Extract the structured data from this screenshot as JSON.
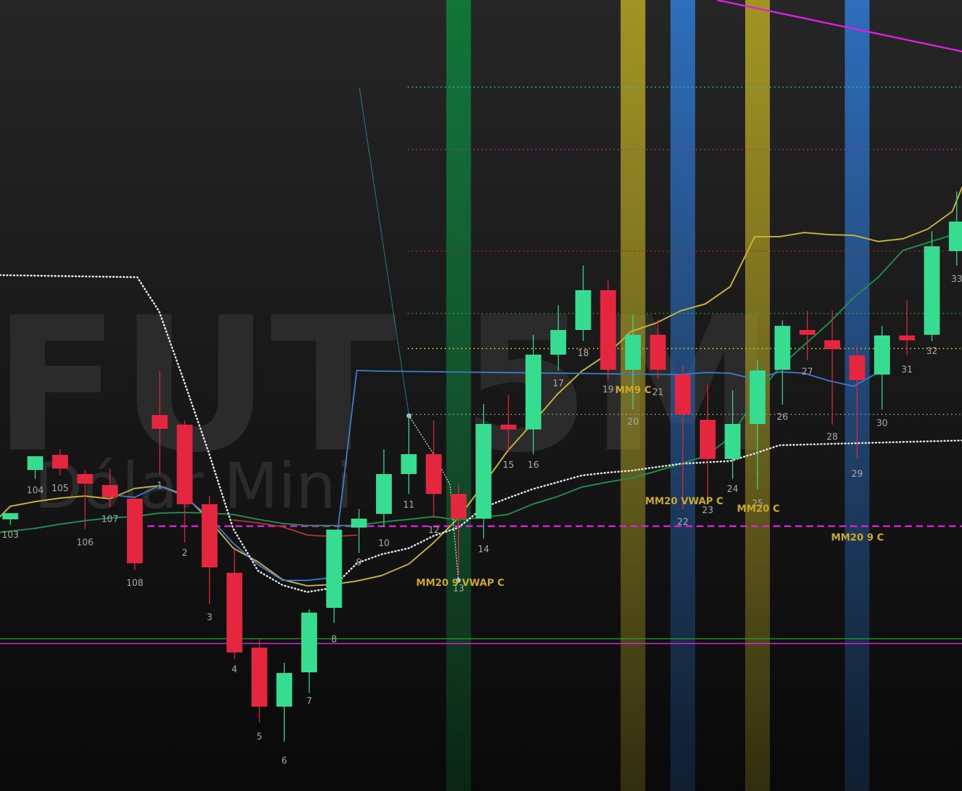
{
  "colors": {
    "bull": "#36dc8f",
    "bear": "#e5263f",
    "bar_label": "#a9a9a9",
    "annotation": "#c9a82c",
    "sma_fast": "#c9b43a",
    "sma_slow": "#1f8f4f",
    "ma_blue": "#3a78c9",
    "ma_red": "#b03030",
    "vwap": "#e6e6e6",
    "support_magenta": "#e020e0",
    "support_green": "#22aa22",
    "trend_magenta": "#e020e0",
    "level_cyan": "#20c8d0",
    "level_magenta": "#c020c0",
    "level_red": "#c02020",
    "level_green": "#20b020",
    "level_yellow": "#c8c820",
    "level_gray": "#9aa0a6",
    "band_green": "#0f7a3a",
    "band_yellow": "#a89a22",
    "band_blue": "#1f5a9a",
    "watermark": "#2b2b2b"
  },
  "watermark": {
    "line1": "FUT 5M",
    "line2": "Dólar Mini"
  },
  "chart_data": {
    "type": "candlestick",
    "price_range": [
      0,
      1153
    ],
    "note_units": "unlabeled price axis (not shown); values in relative price units, higher = higher price",
    "candles": [
      {
        "label": "103",
        "o": 396,
        "h": 405,
        "l": 388,
        "c": 405
      },
      {
        "label": "104",
        "o": 468,
        "h": 488,
        "l": 455,
        "c": 488
      },
      {
        "label": "105",
        "o": 490,
        "h": 498,
        "l": 460,
        "c": 470
      },
      {
        "label": "106",
        "o": 462,
        "h": 468,
        "l": 382,
        "c": 448
      },
      {
        "label": "107",
        "o": 446,
        "h": 470,
        "l": 413,
        "c": 428
      },
      {
        "label": "108",
        "o": 426,
        "h": 430,
        "l": 322,
        "c": 332
      },
      {
        "label": "1",
        "o": 548,
        "h": 612,
        "l": 462,
        "c": 528
      },
      {
        "label": "2",
        "o": 534,
        "h": 540,
        "l": 362,
        "c": 418
      },
      {
        "label": "3",
        "o": 418,
        "h": 430,
        "l": 272,
        "c": 326
      },
      {
        "label": "4",
        "o": 318,
        "h": 353,
        "l": 192,
        "c": 202
      },
      {
        "label": "5",
        "o": 209,
        "h": 222,
        "l": 100,
        "c": 123
      },
      {
        "label": "6",
        "o": 123,
        "h": 187,
        "l": 72,
        "c": 172
      },
      {
        "label": "7",
        "o": 173,
        "h": 265,
        "l": 143,
        "c": 260
      },
      {
        "label": "8",
        "o": 267,
        "h": 381,
        "l": 245,
        "c": 381
      },
      {
        "label": "9",
        "o": 384,
        "h": 411,
        "l": 347,
        "c": 397
      },
      {
        "label": "10",
        "o": 404,
        "h": 498,
        "l": 385,
        "c": 462
      },
      {
        "label": "11",
        "o": 462,
        "h": 548,
        "l": 433,
        "c": 491
      },
      {
        "label": "12",
        "o": 491,
        "h": 540,
        "l": 398,
        "c": 433
      },
      {
        "label": "13",
        "o": 433,
        "h": 448,
        "l": 315,
        "c": 397
      },
      {
        "label": "14",
        "o": 397,
        "h": 564,
        "l": 368,
        "c": 535
      },
      {
        "label": "15",
        "o": 534,
        "h": 577,
        "l": 494,
        "c": 527
      },
      {
        "label": "16",
        "o": 527,
        "h": 665,
        "l": 491,
        "c": 636
      },
      {
        "label": "17",
        "o": 636,
        "h": 708,
        "l": 613,
        "c": 672
      },
      {
        "label": "18",
        "o": 672,
        "h": 766,
        "l": 656,
        "c": 730
      },
      {
        "label": "19",
        "o": 730,
        "h": 744,
        "l": 601,
        "c": 614
      },
      {
        "label": "20",
        "o": 614,
        "h": 694,
        "l": 556,
        "c": 665
      },
      {
        "label": "21",
        "o": 665,
        "h": 687,
        "l": 601,
        "c": 614
      },
      {
        "label": "22",
        "o": 607,
        "h": 620,
        "l": 411,
        "c": 549
      },
      {
        "label": "23",
        "o": 541,
        "h": 592,
        "l": 426,
        "c": 484
      },
      {
        "label": "24",
        "o": 484,
        "h": 584,
        "l": 455,
        "c": 535
      },
      {
        "label": "25",
        "o": 535,
        "h": 628,
        "l": 440,
        "c": 613
      },
      {
        "label": "26",
        "o": 614,
        "h": 686,
        "l": 563,
        "c": 678
      },
      {
        "label": "27",
        "o": 672,
        "h": 700,
        "l": 628,
        "c": 665
      },
      {
        "label": "28",
        "o": 657,
        "h": 701,
        "l": 534,
        "c": 644
      },
      {
        "label": "29",
        "o": 635,
        "h": 650,
        "l": 484,
        "c": 599
      },
      {
        "label": "30",
        "o": 607,
        "h": 678,
        "l": 556,
        "c": 664
      },
      {
        "label": "31",
        "o": 664,
        "h": 715,
        "l": 635,
        "c": 657
      },
      {
        "label": "32",
        "o": 665,
        "h": 816,
        "l": 656,
        "c": 794
      },
      {
        "label": "33",
        "o": 787,
        "h": 874,
        "l": 766,
        "c": 830
      }
    ],
    "series": [
      {
        "key": "sma_fast",
        "values": [
          400,
          415,
          422,
          427,
          430,
          426,
          441,
          445,
          432,
          396,
          354,
          334,
          308,
          299,
          301,
          306,
          314,
          331,
          362,
          398,
          446,
          496,
          536,
          578,
          612,
          636,
          670,
          682,
          700,
          710,
          735,
          808,
          808,
          814,
          811,
          810,
          801,
          805,
          819,
          845,
          880
        ]
      },
      {
        "key": "sma_slow",
        "values": [
          377,
          383,
          389,
          394,
          398,
          400,
          405,
          406,
          405,
          403,
          396,
          390,
          387,
          387,
          387,
          392,
          396,
          400,
          395,
          399,
          403,
          418,
          429,
          443,
          450,
          456,
          466,
          477,
          488,
          515,
          571,
          618,
          650,
          682,
          719,
          749,
          788,
          815
        ]
      },
      {
        "key": "ma_blue",
        "values": [
          432,
          428,
          445,
          430,
          400,
          361,
          330,
          307,
          307,
          311,
          613,
          612,
          607,
          610,
          609,
          600,
          611,
          609,
          598,
          590,
          610
        ]
      },
      {
        "key": "ma_red",
        "values": [
          395,
          391,
          385,
          373,
          371,
          373
        ]
      },
      {
        "key": "vwap",
        "values": [
          752,
          749,
          749,
          699,
          598,
          494,
          382,
          321,
          300,
          290,
          296,
          332,
          345,
          354,
          372,
          384,
          413,
          427,
          440,
          450,
          460,
          464,
          467,
          472,
          477,
          479,
          481,
          492,
          504,
          505,
          511
        ]
      },
      {
        "key": "lead_dotted_cyan",
        "values": [
          1024,
          547
        ]
      },
      {
        "key": "lead_dotted_gray",
        "values": [
          547,
          491,
          446,
          307
        ]
      }
    ],
    "levels": [
      {
        "key": "level_cyan",
        "y": 1026
      },
      {
        "key": "level_magenta",
        "y": 935
      },
      {
        "key": "level_red",
        "y": 787
      },
      {
        "key": "level_green",
        "y": 696
      },
      {
        "key": "level_yellow",
        "y": 645
      },
      {
        "key": "level_gray",
        "y": 549
      },
      {
        "key": "support_magenta_dashed",
        "y": 386
      },
      {
        "key": "support_green",
        "y": 222
      },
      {
        "key": "support_magenta",
        "y": 215
      }
    ],
    "annotations": [
      {
        "text": "MM20 9 VWAP C",
        "bar": "13"
      },
      {
        "text": "MM9 C",
        "bar": "20"
      },
      {
        "text": "MM20 VWAP C",
        "bar": "22"
      },
      {
        "text": "MM20 C",
        "bar": "25"
      },
      {
        "text": "MM20 9 C",
        "bar": "29"
      }
    ],
    "signal_bands": [
      {
        "bar": "13",
        "color": "band_green"
      },
      {
        "bar": "20",
        "color": "band_yellow"
      },
      {
        "bar": "22",
        "color": "band_blue"
      },
      {
        "bar": "25",
        "color": "band_yellow"
      },
      {
        "bar": "29",
        "color": "band_blue"
      }
    ]
  }
}
